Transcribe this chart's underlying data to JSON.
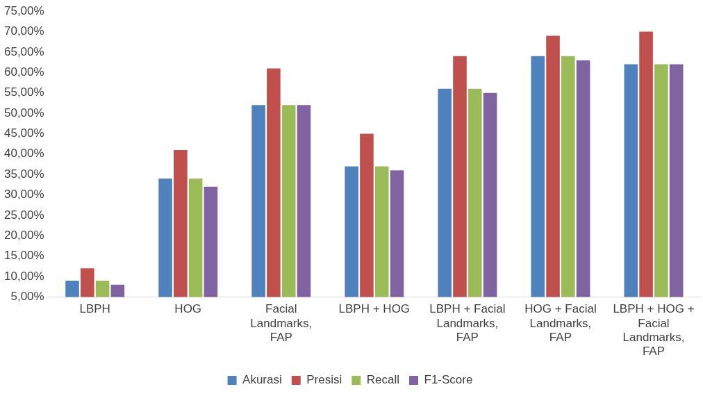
{
  "chart_data": {
    "type": "bar",
    "categories": [
      "LBPH",
      "HOG",
      "Facial Landmarks, FAP",
      "LBPH + HOG",
      "LBPH + Facial Landmarks, FAP",
      "HOG + Facial Landmarks, FAP",
      "LBPH + HOG + Facial Landmarks, FAP"
    ],
    "series": [
      {
        "name": "Akurasi",
        "color": "#4f81bd",
        "values": [
          9,
          34,
          52,
          37,
          56,
          64,
          62
        ]
      },
      {
        "name": "Presisi",
        "color": "#c0504d",
        "values": [
          12,
          41,
          61,
          45,
          64,
          69,
          70
        ]
      },
      {
        "name": "Recall",
        "color": "#9bbb59",
        "values": [
          9,
          34,
          52,
          37,
          56,
          64,
          62
        ]
      },
      {
        "name": "F1-Score",
        "color": "#8064a2",
        "values": [
          8,
          32,
          52,
          36,
          55,
          63,
          62
        ]
      }
    ],
    "ylim": [
      5,
      75
    ],
    "yticks": [
      {
        "value": 5,
        "label": "5,00%"
      },
      {
        "value": 10,
        "label": "10,00%"
      },
      {
        "value": 15,
        "label": "15,00%"
      },
      {
        "value": 20,
        "label": "20,00%"
      },
      {
        "value": 25,
        "label": "25,00%"
      },
      {
        "value": 30,
        "label": "30,00%"
      },
      {
        "value": 35,
        "label": "35,00%"
      },
      {
        "value": 40,
        "label": "40,00%"
      },
      {
        "value": 45,
        "label": "45,00%"
      },
      {
        "value": 50,
        "label": "50,00%"
      },
      {
        "value": 55,
        "label": "55,00%"
      },
      {
        "value": 60,
        "label": "60,00%"
      },
      {
        "value": 65,
        "label": "65,00%"
      },
      {
        "value": 70,
        "label": "70,00%"
      },
      {
        "value": 75,
        "label": "75,00%"
      }
    ],
    "grid": false,
    "legend": "bottom"
  }
}
